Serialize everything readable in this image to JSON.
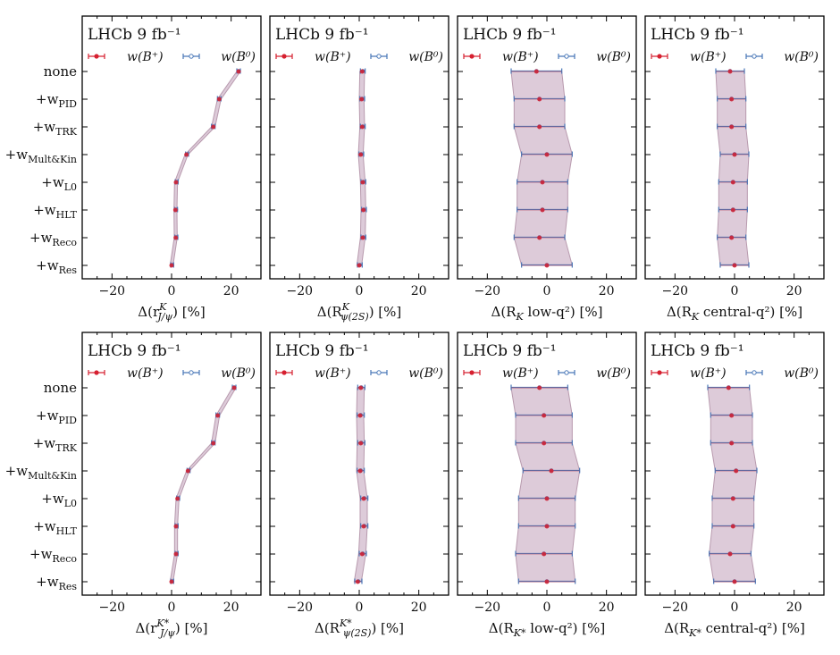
{
  "experiment_label": "LHCb 9 fb⁻¹",
  "legend": {
    "series_a": "w(B⁺)",
    "series_b": "w(B⁰)"
  },
  "colors": {
    "series_a": "#d62030",
    "series_b": "#4a78b8",
    "band": "#c7a9bf",
    "band_edge": "#b89aae"
  },
  "row_labels": [
    {
      "base": "none",
      "sub": ""
    },
    {
      "base": "+w",
      "sub": "PID"
    },
    {
      "base": "+w",
      "sub": "TRK"
    },
    {
      "base": "+w",
      "sub": "Mult&Kin"
    },
    {
      "base": "+w",
      "sub": "L0"
    },
    {
      "base": "+w",
      "sub": "HLT"
    },
    {
      "base": "+w",
      "sub": "Reco"
    },
    {
      "base": "+w",
      "sub": "Res"
    }
  ],
  "chart_data": [
    {
      "type": "scatter",
      "xlim": [
        -30,
        30
      ],
      "xticks": [
        -20,
        0,
        20
      ],
      "xlabel": {
        "pre": "Δ(r",
        "sup": "K",
        "sub": "J/ψ",
        "post": ") [%]"
      },
      "a_values": [
        22.5,
        16.0,
        14.0,
        5.0,
        1.5,
        1.3,
        1.4,
        0.0
      ],
      "a_errors": [
        0.6,
        0.6,
        0.6,
        0.5,
        0.5,
        0.5,
        0.5,
        0.5
      ],
      "b_values": [
        22.5,
        16.0,
        14.0,
        5.2,
        1.7,
        1.5,
        1.6,
        0.2
      ],
      "b_errors": [
        0.6,
        0.6,
        0.6,
        0.5,
        0.5,
        0.5,
        0.5,
        0.5
      ]
    },
    {
      "type": "scatter",
      "xlim": [
        -30,
        30
      ],
      "xticks": [
        -20,
        0,
        20
      ],
      "xlabel": {
        "pre": "Δ(R",
        "sup": "K",
        "sub": "ψ(2S)",
        "post": ") [%]"
      },
      "a_values": [
        1.0,
        0.8,
        1.0,
        0.5,
        1.2,
        1.4,
        1.2,
        0.0
      ],
      "a_errors": [
        0.8,
        0.8,
        0.8,
        0.8,
        0.8,
        0.8,
        0.8,
        0.8
      ],
      "b_values": [
        1.2,
        1.0,
        1.2,
        0.7,
        1.4,
        1.6,
        1.4,
        0.2
      ],
      "b_errors": [
        0.8,
        0.8,
        0.8,
        0.8,
        0.8,
        0.8,
        0.8,
        0.8
      ]
    },
    {
      "type": "scatter",
      "xlim": [
        -30,
        30
      ],
      "xticks": [
        -20,
        0,
        20
      ],
      "xlabel": {
        "pre": "Δ(R",
        "sup": "",
        "sub": "K",
        "post": " low-q²) [%]"
      },
      "a_values": [
        -3.5,
        -2.5,
        -2.5,
        0.0,
        -1.5,
        -1.5,
        -2.5,
        0.0
      ],
      "a_errors": [
        8.5,
        8.5,
        8.5,
        8.5,
        8.5,
        8.5,
        8.5,
        8.5
      ],
      "b_values": [
        -3.5,
        -2.5,
        -2.5,
        0.0,
        -1.5,
        -1.5,
        -2.5,
        0.0
      ],
      "b_errors": [
        8.5,
        8.5,
        8.5,
        8.5,
        8.5,
        8.5,
        8.5,
        8.5
      ]
    },
    {
      "type": "scatter",
      "xlim": [
        -30,
        30
      ],
      "xticks": [
        -20,
        0,
        20
      ],
      "xlabel": {
        "pre": "Δ(R",
        "sup": "",
        "sub": "K",
        "post": " central-q²) [%]"
      },
      "a_values": [
        -1.5,
        -1.0,
        -1.0,
        0.0,
        -0.5,
        -0.5,
        -1.0,
        0.0
      ],
      "a_errors": [
        4.8,
        4.8,
        4.8,
        4.8,
        4.8,
        4.8,
        4.8,
        4.8
      ],
      "b_values": [
        -1.5,
        -1.0,
        -1.0,
        0.0,
        -0.5,
        -0.5,
        -1.0,
        0.0
      ],
      "b_errors": [
        4.8,
        4.8,
        4.8,
        4.8,
        4.8,
        4.8,
        4.8,
        4.8
      ]
    },
    {
      "type": "scatter",
      "xlim": [
        -30,
        30
      ],
      "xticks": [
        -20,
        0,
        20
      ],
      "xlabel": {
        "pre": "Δ(r",
        "sup": "K*",
        "sub": "J/ψ",
        "post": ") [%]"
      },
      "a_values": [
        21.0,
        15.5,
        14.0,
        5.5,
        2.0,
        1.5,
        1.5,
        0.0
      ],
      "a_errors": [
        0.6,
        0.6,
        0.6,
        0.5,
        0.5,
        0.5,
        0.5,
        0.5
      ],
      "b_values": [
        21.0,
        15.5,
        14.0,
        5.7,
        2.2,
        1.7,
        1.7,
        0.2
      ],
      "b_errors": [
        0.6,
        0.6,
        0.6,
        0.5,
        0.5,
        0.5,
        0.5,
        0.5
      ]
    },
    {
      "type": "scatter",
      "xlim": [
        -30,
        30
      ],
      "xticks": [
        -20,
        0,
        20
      ],
      "xlabel": {
        "pre": "Δ(R",
        "sup": "K*",
        "sub": "ψ(2S)",
        "post": ") [%]"
      },
      "a_values": [
        0.5,
        0.3,
        0.5,
        0.3,
        1.5,
        1.5,
        1.0,
        -0.5
      ],
      "a_errors": [
        1.2,
        1.2,
        1.2,
        1.2,
        1.2,
        1.2,
        1.2,
        1.2
      ],
      "b_values": [
        0.7,
        0.5,
        0.7,
        0.5,
        1.7,
        1.7,
        1.2,
        -0.3
      ],
      "b_errors": [
        1.2,
        1.2,
        1.2,
        1.2,
        1.2,
        1.2,
        1.2,
        1.2
      ]
    },
    {
      "type": "scatter",
      "xlim": [
        -30,
        30
      ],
      "xticks": [
        -20,
        0,
        20
      ],
      "xlabel": {
        "pre": "Δ(R",
        "sup": "",
        "sub": "K*",
        "post": " low-q²) [%]"
      },
      "a_values": [
        -2.5,
        -1.0,
        -1.0,
        1.5,
        0.0,
        0.0,
        -1.0,
        0.0
      ],
      "a_errors": [
        9.5,
        9.5,
        9.5,
        9.5,
        9.5,
        9.5,
        9.5,
        9.5
      ],
      "b_values": [
        -2.5,
        -1.0,
        -1.0,
        1.5,
        0.0,
        0.0,
        -1.0,
        0.0
      ],
      "b_errors": [
        9.5,
        9.5,
        9.5,
        9.5,
        9.5,
        9.5,
        9.5,
        9.5
      ]
    },
    {
      "type": "scatter",
      "xlim": [
        -30,
        30
      ],
      "xticks": [
        -20,
        0,
        20
      ],
      "xlabel": {
        "pre": "Δ(R",
        "sup": "",
        "sub": "K*",
        "post": " central-q²) [%]"
      },
      "a_values": [
        -2.0,
        -1.0,
        -1.0,
        0.5,
        -0.5,
        -0.5,
        -1.5,
        0.0
      ],
      "a_errors": [
        7.0,
        7.0,
        7.0,
        7.0,
        7.0,
        7.0,
        7.0,
        7.0
      ],
      "b_values": [
        -2.0,
        -1.0,
        -1.0,
        0.5,
        -0.5,
        -0.5,
        -1.5,
        0.0
      ],
      "b_errors": [
        7.0,
        7.0,
        7.0,
        7.0,
        7.0,
        7.0,
        7.0,
        7.0
      ]
    }
  ]
}
